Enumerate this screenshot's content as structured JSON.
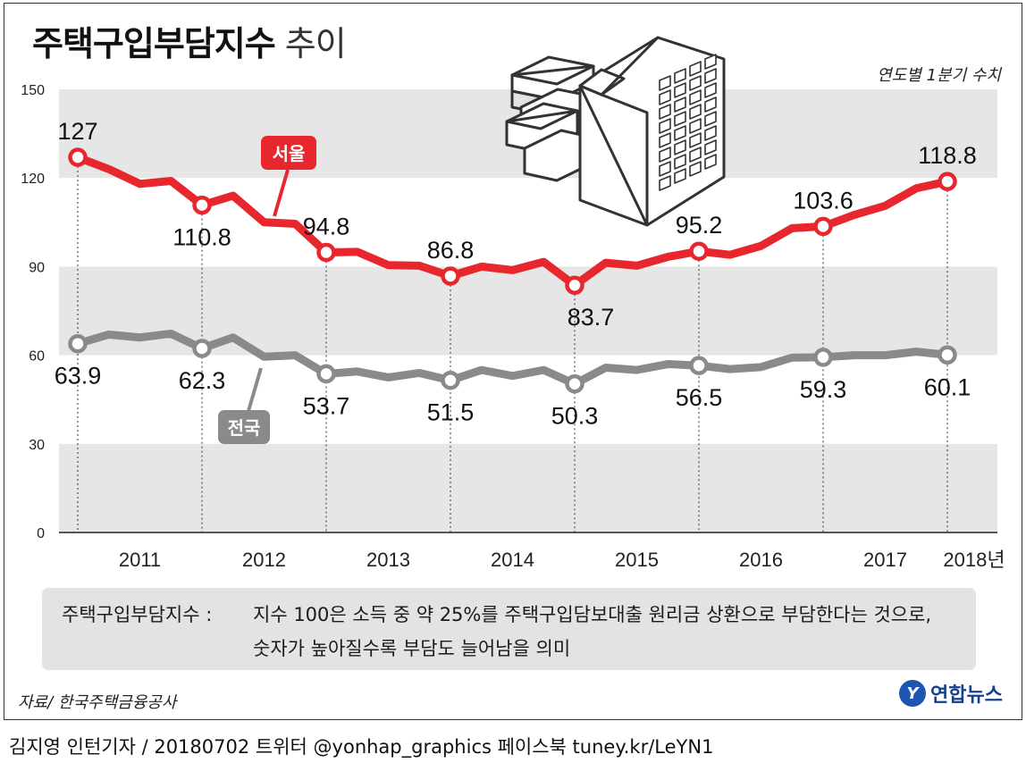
{
  "title": {
    "bold": "주택구입부담지수",
    "light": "추이"
  },
  "unit_note": "연도별 1분기 수치",
  "note": {
    "key": "주택구입부담지수 :",
    "line1": "지수 100은 소득 중 약 25%를 주택구입담보대출 원리금 상환으로 부담한다는 것으로,",
    "line2": "숫자가 높아질수록 부담도 늘어남을 의미"
  },
  "source": "자료/ 한국주택금융공사",
  "brand": {
    "logo_text": "Y",
    "name": "연합뉴스"
  },
  "credit": "김지영 인턴기자 / 20180702 트위터 @yonhap_graphics  페이스북 tuney.kr/LeYN1",
  "colors": {
    "seoul": "#e8262d",
    "national": "#8a8a8a",
    "band": "#e6e6e6"
  },
  "chart_data": {
    "type": "line",
    "title": "주택구입부담지수 추이",
    "ylim": [
      0,
      150
    ],
    "yticks": [
      0,
      30,
      60,
      90,
      120,
      150
    ],
    "year_labels": [
      "2011",
      "2012",
      "2013",
      "2014",
      "2015",
      "2016",
      "2017",
      "2018년"
    ],
    "quarters_start": "2010Q1",
    "series": [
      {
        "name": "서울",
        "values": [
          127,
          123,
          118,
          119,
          110.8,
          114,
          105,
          104.5,
          94.8,
          95,
          90.5,
          90.3,
          86.8,
          90,
          88.8,
          91.6,
          83.7,
          91.3,
          90.3,
          93.3,
          95.2,
          94,
          97,
          103,
          103.6,
          107.5,
          110.6,
          116.5,
          118.8
        ],
        "labels": [
          {
            "index": 0,
            "text": "127"
          },
          {
            "index": 4,
            "text": "110.8"
          },
          {
            "index": 8,
            "text": "94.8"
          },
          {
            "index": 12,
            "text": "86.8"
          },
          {
            "index": 16,
            "text": "83.7"
          },
          {
            "index": 20,
            "text": "95.2"
          },
          {
            "index": 24,
            "text": "103.6"
          },
          {
            "index": 28,
            "text": "118.8"
          }
        ]
      },
      {
        "name": "전국",
        "values": [
          63.9,
          67,
          66,
          67.3,
          62.3,
          66,
          59.5,
          60,
          53.7,
          54.5,
          52.5,
          54,
          51.5,
          55,
          53,
          55,
          50.3,
          55.8,
          55,
          57,
          56.5,
          55.3,
          56,
          59.2,
          59.3,
          60,
          60,
          61.2,
          60.1
        ],
        "labels": [
          {
            "index": 0,
            "text": "63.9"
          },
          {
            "index": 4,
            "text": "62.3"
          },
          {
            "index": 8,
            "text": "53.7"
          },
          {
            "index": 12,
            "text": "51.5"
          },
          {
            "index": 16,
            "text": "50.3"
          },
          {
            "index": 20,
            "text": "56.5"
          },
          {
            "index": 24,
            "text": "59.3"
          },
          {
            "index": 28,
            "text": "60.1"
          }
        ]
      }
    ]
  }
}
